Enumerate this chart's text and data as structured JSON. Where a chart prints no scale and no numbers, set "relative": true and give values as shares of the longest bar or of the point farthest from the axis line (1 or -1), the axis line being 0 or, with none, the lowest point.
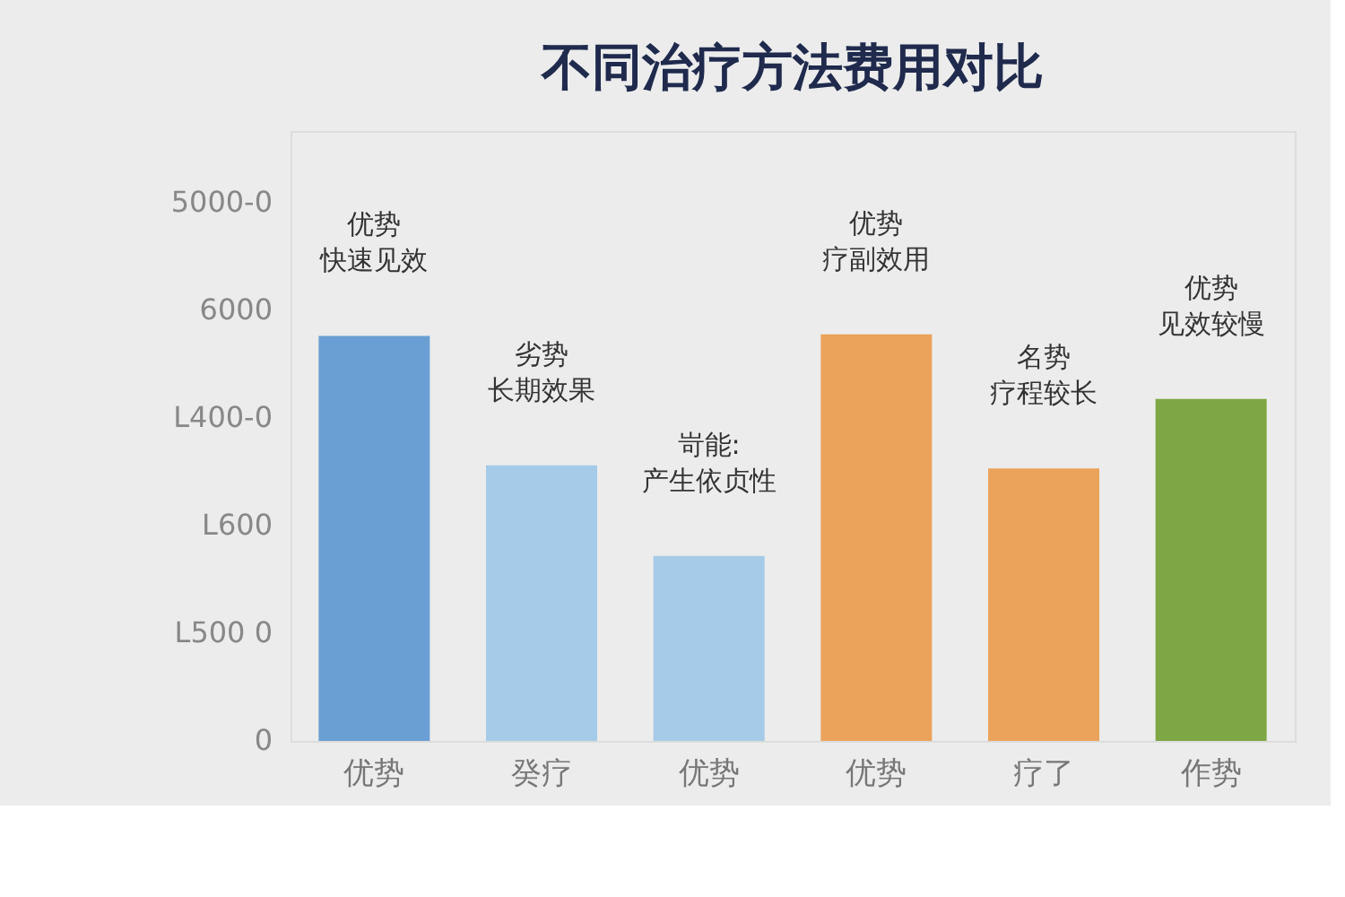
{
  "chart_data": {
    "type": "bar",
    "title": "不同治疗方法费用对比",
    "relative": true,
    "categories": [
      "优势",
      "癸疗",
      "优势",
      "优势",
      "疗了",
      "作势"
    ],
    "values": [
      0.996,
      0.678,
      0.455,
      1,
      0.67,
      0.841
    ],
    "colors": [
      "#6a9fd4",
      "#a5cbe8",
      "#a5cbe8",
      "#eba25a",
      "#eba25a",
      "#7fa644"
    ],
    "annotations": [
      "优势",
      "快速见效",
      "劣势",
      "长期效果",
      "岢能:",
      "产生依贞性",
      "优势",
      "疗副效用",
      "名势",
      "疗程较长",
      "优势",
      "见效较慢",
      "5000-0",
      "6000",
      "L400-0",
      "L600",
      "L500 0",
      "0"
    ]
  }
}
